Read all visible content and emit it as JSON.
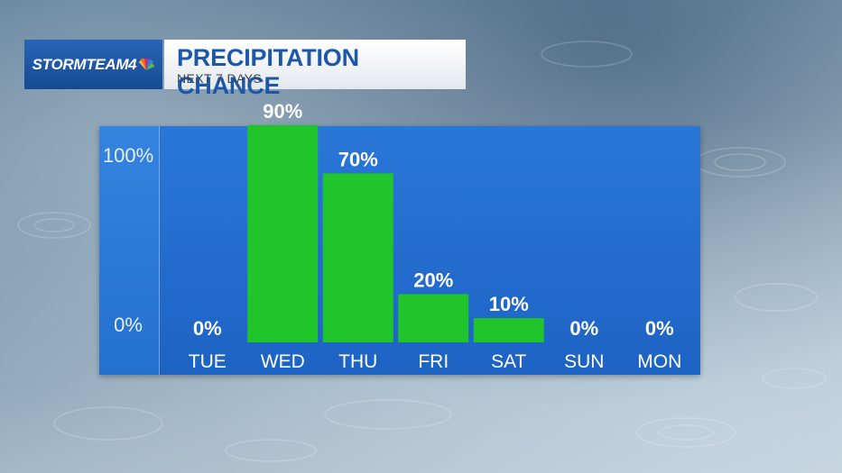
{
  "brand": {
    "logo_text": "STORMTEAM4"
  },
  "header": {
    "title": "PRECIPITATION CHANCE",
    "subtitle": "NEXT 7 DAYS"
  },
  "colors": {
    "panel": "#1d63c4",
    "bar": "#1fc52a",
    "text": "#ffffff"
  },
  "chart_data": {
    "type": "bar",
    "categories": [
      "TUE",
      "WED",
      "THU",
      "FRI",
      "SAT",
      "SUN",
      "MON"
    ],
    "values": [
      0,
      90,
      70,
      20,
      10,
      0,
      0
    ],
    "value_labels": [
      "0%",
      "90%",
      "70%",
      "20%",
      "10%",
      "0%",
      "0%"
    ],
    "y_tick_labels": [
      "0%",
      "100%"
    ],
    "ylim": [
      0,
      100
    ],
    "grid": false,
    "legend": false
  }
}
